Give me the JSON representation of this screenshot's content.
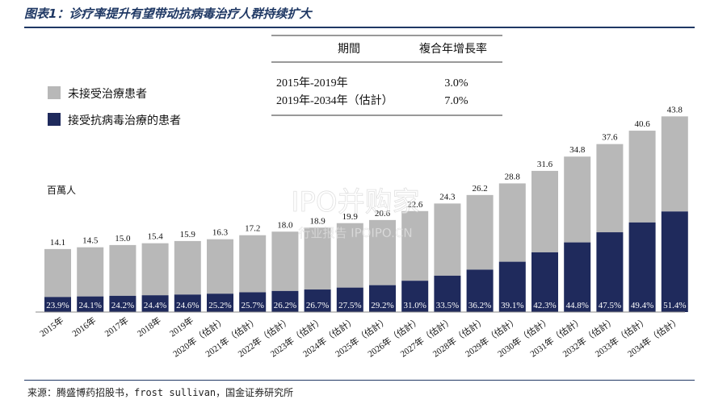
{
  "title": "图表1：诊疗率提升有望带动抗病毒治疗人群持续扩大",
  "source": "来源：腾盛博药招股书，frost sullivan，国金证券研究所",
  "watermark": {
    "line1": "IPO并购家",
    "line2": "行业报告 IPOIPO.CN"
  },
  "table": {
    "headers": [
      "期間",
      "複合年增長率"
    ],
    "rows": [
      [
        "2015年-2019年",
        "3.0%"
      ],
      [
        "2019年-2034年（估計）",
        "7.0%"
      ]
    ]
  },
  "chart_data": {
    "type": "bar",
    "stacked": true,
    "unit_label": "百萬人",
    "categories": [
      "2015年",
      "2016年",
      "2017年",
      "2018年",
      "2019年",
      "2020年（估計）",
      "2021年（估計）",
      "2022年（估計）",
      "2023年（估計）",
      "2024年（估計）",
      "2025年（估計）",
      "2026年（估計）",
      "2027年（估計）",
      "2028年（估計）",
      "2029年（估計）",
      "2030年（估計）",
      "2031年（估計）",
      "2032年（估計）",
      "2033年（估計）",
      "2034年（估計）"
    ],
    "totals": [
      14.1,
      14.5,
      15.0,
      15.4,
      15.9,
      16.3,
      17.2,
      18.0,
      18.9,
      19.9,
      20.6,
      22.6,
      24.3,
      26.2,
      28.8,
      31.6,
      34.8,
      37.6,
      40.6,
      43.8
    ],
    "total_labels": [
      "14.1",
      "14.5",
      "15.0",
      "15.4",
      "15.9",
      "16.3",
      "17.2",
      "18.0",
      "18.9",
      "19.9",
      "20.6",
      "22.6",
      "24.3",
      "26.2",
      "28.8",
      "31.6",
      "34.8",
      "37.6",
      "40.6",
      "43.8"
    ],
    "treated_share_pct": [
      23.9,
      24.1,
      24.2,
      24.4,
      24.6,
      25.2,
      25.7,
      26.2,
      26.7,
      27.5,
      29.2,
      31.0,
      33.5,
      36.2,
      39.1,
      42.3,
      44.8,
      47.5,
      49.4,
      51.4
    ],
    "share_labels": [
      "23.9%",
      "24.1%",
      "24.2%",
      "24.4%",
      "24.6%",
      "25.2%",
      "25.7%",
      "26.2%",
      "26.7%",
      "27.5%",
      "29.2%",
      "31.0%",
      "33.5%",
      "36.2%",
      "39.1%",
      "42.3%",
      "44.8%",
      "47.5%",
      "49.4%",
      "51.4%"
    ],
    "series": [
      {
        "name": "未接受治療患者",
        "color": "#b8b8b8"
      },
      {
        "name": "接受抗病毒治療的患者",
        "color": "#1f2a5c"
      }
    ],
    "legend_position": "top-left",
    "grid": false
  }
}
